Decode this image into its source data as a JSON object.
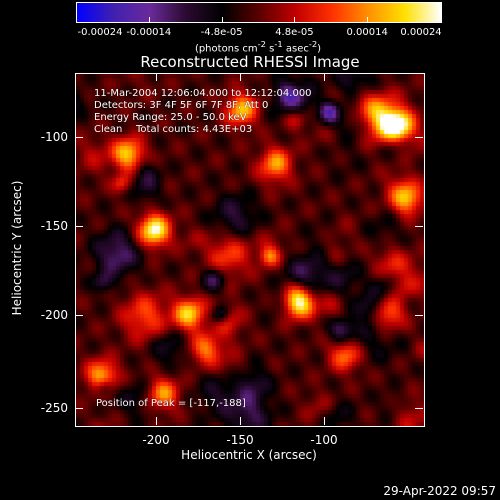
{
  "colorbar": {
    "labels": [
      "-0.00024",
      "-0.00014",
      "-4.8e-05",
      "4.8e-05",
      "0.00014",
      "0.00024"
    ],
    "units_html": "(photons cm<sup>-2</sup> s<sup>-1</sup> asec<sup>-2</sup>)",
    "colors": [
      "#0000ff",
      "#4020b0",
      "#6a2a9a",
      "#2a0a30",
      "#000000",
      "#5a0000",
      "#c00000",
      "#ff3000",
      "#ff9000",
      "#ffe000",
      "#ffffff"
    ]
  },
  "title": "Reconstructed RHESSI Image",
  "annotations": {
    "line1": "11-Mar-2004 12:06:04.000 to 12:12:04.000",
    "line2": "Detectors: 3F 4F 5F 6F 7F 8F, Att 0",
    "line3": "Energy Range: 25.0 - 50.0 keV",
    "line4_left": "Clean",
    "line4_right": "Total counts: 4.43E+03",
    "peak": "Position of Peak = [-117,-188]"
  },
  "axes": {
    "x_title": "Heliocentric X (arcsec)",
    "y_title": "Heliocentric Y (arcsec)",
    "x_ticks": [
      "-200",
      "-150",
      "-100"
    ],
    "y_ticks": [
      "-100",
      "-150",
      "-200",
      "-250"
    ],
    "x_range": [
      -245,
      -45
    ],
    "y_range": [
      -258,
      -60
    ]
  },
  "footer": {
    "date": "29-Apr-2022 09:57"
  },
  "peaks": [
    {
      "x": -117,
      "y": -188,
      "v": 1.0
    },
    {
      "x": -200,
      "y": -148,
      "v": 0.95
    },
    {
      "x": -60,
      "y": -90,
      "v": 0.9
    },
    {
      "x": -55,
      "y": -130,
      "v": 0.7
    },
    {
      "x": -150,
      "y": -80,
      "v": 0.7
    },
    {
      "x": -215,
      "y": -105,
      "v": 0.75
    },
    {
      "x": -180,
      "y": -195,
      "v": 0.75
    },
    {
      "x": -230,
      "y": -230,
      "v": 0.7
    },
    {
      "x": -195,
      "y": -240,
      "v": 0.6
    },
    {
      "x": -90,
      "y": -218,
      "v": 0.55
    },
    {
      "x": -170,
      "y": -215,
      "v": 0.55
    },
    {
      "x": -130,
      "y": -110,
      "v": 0.5
    },
    {
      "x": -65,
      "y": -195,
      "v": 0.5
    }
  ]
}
